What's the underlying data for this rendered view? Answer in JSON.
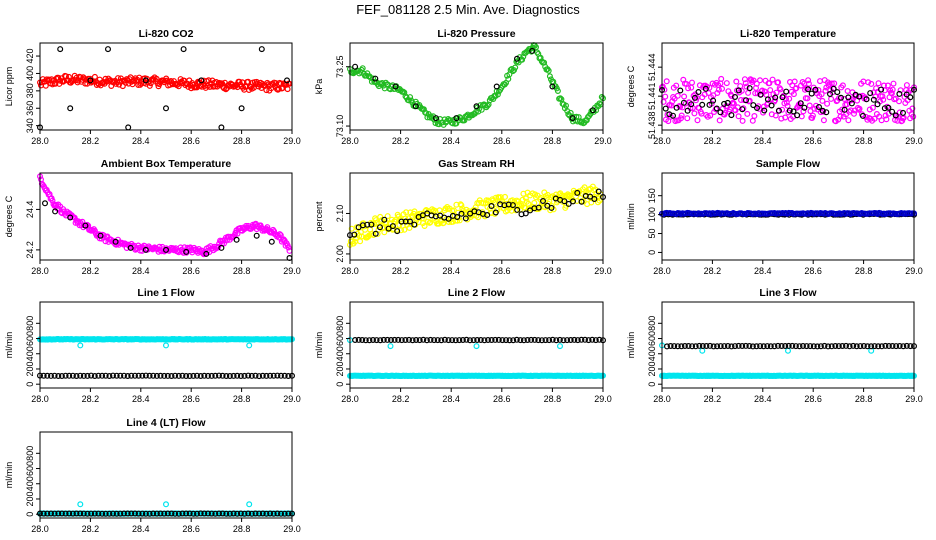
{
  "figure": {
    "title": "FEF_081128  2.5 Min. Ave. Diagnostics"
  },
  "colors": {
    "black": "#000000",
    "red": "#ff0000",
    "green": "#22bb22",
    "magenta": "#ff00ff",
    "yellow": "#ffff00",
    "blue": "#0000cc",
    "cyan": "#00e5ee"
  },
  "chart_data": [
    {
      "id": "li820-co2",
      "type": "scatter",
      "title": "Li-820 CO2",
      "ylabel": "Licor ppm",
      "xlim": [
        28.0,
        29.0
      ],
      "ylim": [
        335,
        435
      ],
      "xticks": [
        "28.0",
        "28.2",
        "28.4",
        "28.6",
        "28.8",
        "29.0"
      ],
      "xtick_values": [
        28.0,
        28.2,
        28.4,
        28.6,
        28.8,
        29.0
      ],
      "yticks": [
        "340",
        "360",
        "380",
        "400",
        "420"
      ],
      "ytick_values": [
        340,
        360,
        380,
        400,
        420
      ],
      "series": [
        {
          "name": "dense",
          "color": "red",
          "x": [
            28.0,
            28.1,
            28.2,
            28.3,
            28.4,
            28.5,
            28.6,
            28.7,
            28.8,
            28.9,
            28.99
          ],
          "y": [
            388,
            393,
            392,
            390,
            391,
            390,
            388,
            387,
            386,
            385,
            385
          ],
          "spread": 5,
          "density": 260
        },
        {
          "name": "sparse",
          "color": "black",
          "x": [
            28.0,
            28.08,
            28.12,
            28.2,
            28.27,
            28.35,
            28.42,
            28.5,
            28.57,
            28.64,
            28.72,
            28.8,
            28.88,
            28.98
          ],
          "y": [
            338,
            428,
            360,
            392,
            428,
            338,
            392,
            360,
            428,
            392,
            338,
            360,
            428,
            392
          ],
          "spread": 0,
          "density": 0
        }
      ]
    },
    {
      "id": "li820-pressure",
      "type": "scatter",
      "title": "Li-820 Pressure",
      "ylabel": "kPa",
      "xlim": [
        28.0,
        29.0
      ],
      "ylim": [
        73.09,
        73.31
      ],
      "xticks": [
        "28.0",
        "28.2",
        "28.4",
        "28.6",
        "28.8",
        "29.0"
      ],
      "xtick_values": [
        28.0,
        28.2,
        28.4,
        28.6,
        28.8,
        29.0
      ],
      "yticks": [
        "73.10",
        "73.25"
      ],
      "ytick_values": [
        73.1,
        73.25
      ],
      "series": [
        {
          "name": "dense",
          "color": "green",
          "x": [
            28.0,
            28.05,
            28.1,
            28.15,
            28.2,
            28.25,
            28.3,
            28.35,
            28.4,
            28.45,
            28.5,
            28.55,
            28.6,
            28.65,
            28.7,
            28.73,
            28.78,
            28.83,
            28.88,
            28.93,
            29.0
          ],
          "y": [
            73.24,
            73.24,
            73.21,
            73.2,
            73.19,
            73.16,
            73.13,
            73.11,
            73.11,
            73.12,
            73.14,
            73.16,
            73.2,
            73.25,
            73.29,
            73.3,
            73.24,
            73.17,
            73.12,
            73.11,
            73.17
          ],
          "spread": 0.008,
          "density": 220
        },
        {
          "name": "sparse",
          "color": "black",
          "x": [
            28.02,
            28.1,
            28.18,
            28.26,
            28.34,
            28.42,
            28.5,
            28.58,
            28.66,
            28.72,
            28.8,
            28.88,
            28.96
          ],
          "y": [
            73.25,
            73.22,
            73.2,
            73.15,
            73.12,
            73.12,
            73.15,
            73.2,
            73.27,
            73.29,
            73.2,
            73.12,
            73.14
          ],
          "spread": 0,
          "density": 0
        }
      ]
    },
    {
      "id": "li820-temperature",
      "type": "scatter",
      "title": "Li-820 Temperature",
      "ylabel": "degrees C",
      "xlim": [
        28.0,
        29.0
      ],
      "ylim": [
        51.4375,
        51.4465
      ],
      "xticks": [
        "28.0",
        "28.2",
        "28.4",
        "28.6",
        "28.8",
        "29.0"
      ],
      "xtick_values": [
        28.0,
        28.2,
        28.4,
        28.6,
        28.8,
        29.0
      ],
      "yticks": [
        "51.438",
        "51.441",
        "51.444"
      ],
      "ytick_values": [
        51.438,
        51.441,
        51.444
      ],
      "series": [
        {
          "name": "dense",
          "color": "magenta",
          "x": [
            28.0,
            29.0
          ],
          "y": [
            51.4406,
            51.4406
          ],
          "spread": 0.0022,
          "density": 320
        },
        {
          "name": "sparse",
          "color": "black",
          "x": [
            28.0,
            29.0
          ],
          "y": [
            51.4404,
            51.4404
          ],
          "spread": 0.0015,
          "density": 70
        }
      ]
    },
    {
      "id": "ambient-box-temperature",
      "type": "scatter",
      "title": "Ambient Box Temperature",
      "ylabel": "degrees C",
      "xlim": [
        28.0,
        29.0
      ],
      "ylim": [
        24.15,
        24.58
      ],
      "xticks": [
        "28.0",
        "28.2",
        "28.4",
        "28.6",
        "28.8",
        "29.0"
      ],
      "xtick_values": [
        28.0,
        28.2,
        28.4,
        28.6,
        28.8,
        29.0
      ],
      "yticks": [
        "24.2",
        "24.4"
      ],
      "ytick_values": [
        24.2,
        24.4
      ],
      "series": [
        {
          "name": "dense",
          "color": "magenta",
          "x": [
            28.0,
            28.05,
            28.1,
            28.15,
            28.2,
            28.25,
            28.3,
            28.35,
            28.4,
            28.5,
            28.6,
            28.65,
            28.7,
            28.75,
            28.8,
            28.85,
            28.9,
            28.95,
            28.99
          ],
          "y": [
            24.56,
            24.44,
            24.38,
            24.34,
            24.3,
            24.26,
            24.24,
            24.22,
            24.21,
            24.2,
            24.2,
            24.19,
            24.22,
            24.26,
            24.3,
            24.32,
            24.3,
            24.27,
            24.2
          ],
          "spread": 0.015,
          "density": 260
        },
        {
          "name": "sparse",
          "color": "black",
          "x": [
            28.02,
            28.06,
            28.12,
            28.18,
            28.24,
            28.3,
            28.36,
            28.42,
            28.5,
            28.58,
            28.66,
            28.72,
            28.78,
            28.86,
            28.92,
            28.99
          ],
          "y": [
            24.43,
            24.39,
            24.36,
            24.32,
            24.27,
            24.24,
            24.21,
            24.2,
            24.2,
            24.19,
            24.18,
            24.21,
            24.25,
            24.27,
            24.24,
            24.16
          ],
          "spread": 0,
          "density": 0
        }
      ]
    },
    {
      "id": "gas-stream-rh",
      "type": "scatter",
      "title": "Gas Stream RH",
      "ylabel": "percent",
      "xlim": [
        28.0,
        29.0
      ],
      "ylim": [
        1.985,
        2.2
      ],
      "xticks": [
        "28.0",
        "28.2",
        "28.4",
        "28.6",
        "28.8",
        "29.0"
      ],
      "xtick_values": [
        28.0,
        28.2,
        28.4,
        28.6,
        28.8,
        29.0
      ],
      "yticks": [
        "2.00",
        "2.10"
      ],
      "ytick_values": [
        2.0,
        2.1
      ],
      "series": [
        {
          "name": "dense",
          "color": "yellow",
          "x": [
            28.0,
            28.1,
            28.2,
            28.3,
            28.4,
            28.5,
            28.6,
            28.7,
            28.8,
            28.9,
            28.99
          ],
          "y": [
            2.04,
            2.07,
            2.08,
            2.09,
            2.1,
            2.11,
            2.12,
            2.13,
            2.13,
            2.14,
            2.15
          ],
          "spread": 0.022,
          "density": 300
        },
        {
          "name": "sparse",
          "color": "black",
          "x": [
            28.0,
            29.0
          ],
          "y": [
            2.055,
            2.145
          ],
          "spread": 0.018,
          "density": 60
        }
      ]
    },
    {
      "id": "sample-flow",
      "type": "scatter",
      "title": "Sample Flow",
      "ylabel": "ml/min",
      "xlim": [
        28.0,
        29.0
      ],
      "ylim": [
        -20,
        210
      ],
      "xticks": [
        "28.0",
        "28.2",
        "28.4",
        "28.6",
        "28.8",
        "29.0"
      ],
      "xtick_values": [
        28.0,
        28.2,
        28.4,
        28.6,
        28.8,
        29.0
      ],
      "yticks": [
        "0",
        "50",
        "100",
        "150"
      ],
      "ytick_values": [
        0,
        50,
        100,
        150
      ],
      "series": [
        {
          "name": "black",
          "color": "black",
          "x": [
            28.0,
            29.0
          ],
          "y": [
            101,
            101
          ],
          "spread": 1.5,
          "density": 120
        },
        {
          "name": "blue",
          "color": "blue",
          "x": [
            28.0,
            29.0
          ],
          "y": [
            103,
            103
          ],
          "spread": 1.5,
          "density": 160
        }
      ]
    },
    {
      "id": "line-1-flow",
      "type": "scatter",
      "title": "Line 1 Flow",
      "ylabel": "ml/min",
      "xlim": [
        28.0,
        29.0
      ],
      "ylim": [
        -50,
        1080
      ],
      "xticks": [
        "28.0",
        "28.2",
        "28.4",
        "28.6",
        "28.8",
        "29.0"
      ],
      "xtick_values": [
        28.0,
        28.2,
        28.4,
        28.6,
        28.8,
        29.0
      ],
      "yticks": [
        "0",
        "200",
        "400",
        "600",
        "800"
      ],
      "ytick_values": [
        0,
        200,
        400,
        600,
        800
      ],
      "series": [
        {
          "name": "cyan",
          "color": "cyan",
          "x": [
            28.0,
            29.0
          ],
          "y": [
            590,
            590
          ],
          "spread": 4,
          "density": 260,
          "outliers": {
            "x": [
              28.16,
              28.5,
              28.83
            ],
            "y": [
              510,
              510,
              510
            ]
          }
        },
        {
          "name": "black",
          "color": "black",
          "x": [
            28.0,
            29.0
          ],
          "y": [
            110,
            110
          ],
          "spread": 3,
          "density": 70
        }
      ]
    },
    {
      "id": "line-2-flow",
      "type": "scatter",
      "title": "Line 2 Flow",
      "ylabel": "ml/min",
      "xlim": [
        28.0,
        29.0
      ],
      "ylim": [
        -50,
        1080
      ],
      "xticks": [
        "28.0",
        "28.2",
        "28.4",
        "28.6",
        "28.8",
        "29.0"
      ],
      "xtick_values": [
        28.0,
        28.2,
        28.4,
        28.6,
        28.8,
        29.0
      ],
      "yticks": [
        "0",
        "200",
        "400",
        "600",
        "800"
      ],
      "ytick_values": [
        0,
        200,
        400,
        600,
        800
      ],
      "series": [
        {
          "name": "cyan",
          "color": "cyan",
          "x": [
            28.0,
            29.0
          ],
          "y": [
            110,
            110
          ],
          "spread": 3,
          "density": 260,
          "outliers": {
            "x": [
              28.0,
              28.16,
              28.5,
              28.83
            ],
            "y": [
              580,
              500,
              500,
              500
            ]
          }
        },
        {
          "name": "black",
          "color": "black",
          "x": [
            28.02,
            29.0
          ],
          "y": [
            580,
            580
          ],
          "spread": 3,
          "density": 70
        }
      ]
    },
    {
      "id": "line-3-flow",
      "type": "scatter",
      "title": "Line 3 Flow",
      "ylabel": "ml/min",
      "xlim": [
        28.0,
        29.0
      ],
      "ylim": [
        -50,
        1080
      ],
      "xticks": [
        "28.0",
        "28.2",
        "28.4",
        "28.6",
        "28.8",
        "29.0"
      ],
      "xtick_values": [
        28.0,
        28.2,
        28.4,
        28.6,
        28.8,
        29.0
      ],
      "yticks": [
        "0",
        "200",
        "400",
        "600",
        "800"
      ],
      "ytick_values": [
        0,
        200,
        400,
        600,
        800
      ],
      "series": [
        {
          "name": "cyan",
          "color": "cyan",
          "x": [
            28.0,
            29.0
          ],
          "y": [
            110,
            110
          ],
          "spread": 3,
          "density": 260,
          "outliers": {
            "x": [
              28.0,
              28.16,
              28.5,
              28.83
            ],
            "y": [
              510,
              440,
              440,
              440
            ]
          }
        },
        {
          "name": "black",
          "color": "black",
          "x": [
            28.02,
            29.0
          ],
          "y": [
            500,
            500
          ],
          "spread": 3,
          "density": 70
        }
      ]
    },
    {
      "id": "line-4-lt-flow",
      "type": "scatter",
      "title": "Line 4 (LT) Flow",
      "ylabel": "ml/min",
      "xlim": [
        28.0,
        29.0
      ],
      "ylim": [
        -50,
        1080
      ],
      "xticks": [
        "28.0",
        "28.2",
        "28.4",
        "28.6",
        "28.8",
        "29.0"
      ],
      "xtick_values": [
        28.0,
        28.2,
        28.4,
        28.6,
        28.8,
        29.0
      ],
      "yticks": [
        "0",
        "200",
        "400",
        "600",
        "800"
      ],
      "ytick_values": [
        0,
        200,
        400,
        600,
        800
      ],
      "series": [
        {
          "name": "cyan",
          "color": "cyan",
          "x": [
            28.0,
            29.0
          ],
          "y": [
            8,
            8
          ],
          "spread": 2,
          "density": 220,
          "outliers": {
            "x": [
              28.16,
              28.5,
              28.83
            ],
            "y": [
              130,
              130,
              130
            ]
          }
        },
        {
          "name": "black",
          "color": "black",
          "x": [
            28.0,
            29.0
          ],
          "y": [
            8,
            8
          ],
          "spread": 2,
          "density": 70
        }
      ]
    }
  ]
}
